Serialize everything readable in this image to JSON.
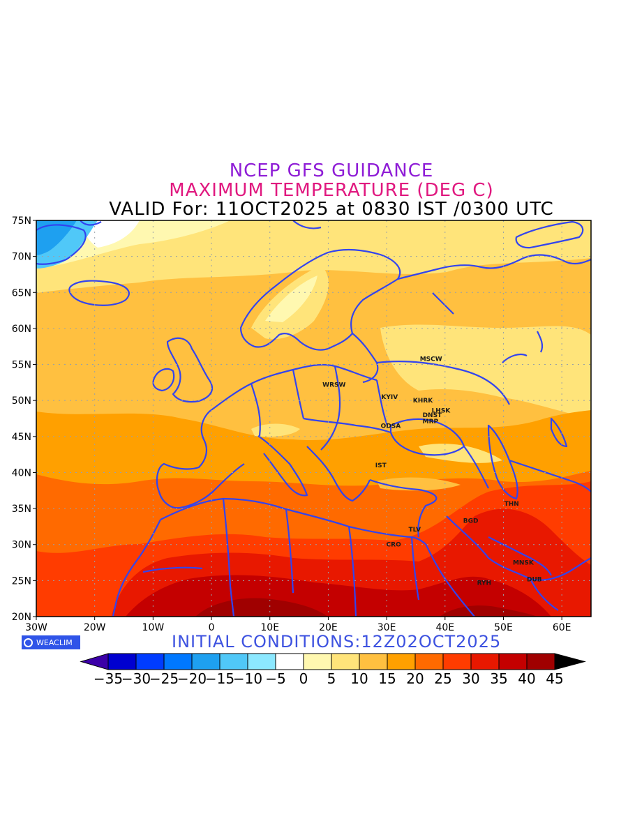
{
  "titles": {
    "line1": "NCEP GFS GUIDANCE",
    "line2": "MAXIMUM TEMPERATURE (DEG C)",
    "line3": "VALID For: 11OCT2025 at 0830 IST /0300 UTC"
  },
  "initial_conditions": "INITIAL  CONDITIONS:12Z02OCT2025",
  "brand": "WEACLIM",
  "axes": {
    "lat_ticks": [
      "75N",
      "70N",
      "65N",
      "60N",
      "55N",
      "50N",
      "45N",
      "40N",
      "35N",
      "30N",
      "25N",
      "20N"
    ],
    "lon_ticks": [
      "30W",
      "20W",
      "10W",
      "0",
      "10E",
      "20E",
      "30E",
      "40E",
      "50E",
      "60E"
    ]
  },
  "cities": [
    {
      "label": "MSCW",
      "lon": 37.6,
      "lat": 55.8
    },
    {
      "label": "WRSW",
      "lon": 21.0,
      "lat": 52.2
    },
    {
      "label": "KYIV",
      "lon": 30.5,
      "lat": 50.5
    },
    {
      "label": "KHRK",
      "lon": 36.2,
      "lat": 50.0
    },
    {
      "label": "LHSK",
      "lon": 39.3,
      "lat": 48.6
    },
    {
      "label": "DNST",
      "lon": 37.8,
      "lat": 48.0
    },
    {
      "label": "MRP",
      "lon": 37.5,
      "lat": 47.1
    },
    {
      "label": "ODSA",
      "lon": 30.7,
      "lat": 46.5
    },
    {
      "label": "IST",
      "lon": 29.0,
      "lat": 41.0
    },
    {
      "label": "THN",
      "lon": 51.4,
      "lat": 35.7
    },
    {
      "label": "BGD",
      "lon": 44.4,
      "lat": 33.3
    },
    {
      "label": "TLV",
      "lon": 34.8,
      "lat": 32.1
    },
    {
      "label": "CRO",
      "lon": 31.2,
      "lat": 30.0
    },
    {
      "label": "MNSK",
      "lon": 53.4,
      "lat": 27.5
    },
    {
      "label": "DUB",
      "lon": 55.3,
      "lat": 25.2
    },
    {
      "label": "RYH",
      "lon": 46.7,
      "lat": 24.7
    }
  ],
  "legend": {
    "labels": [
      "-35",
      "-30",
      "-25",
      "-20",
      "-15",
      "-10",
      "-5",
      "0",
      "5",
      "10",
      "15",
      "20",
      "25",
      "30",
      "35",
      "40",
      "45"
    ],
    "colors": [
      "#0000d0",
      "#003cff",
      "#0078ff",
      "#1ea0f0",
      "#50c8f8",
      "#8ce8ff",
      "#ffffff",
      "#fff8b0",
      "#ffe47a",
      "#ffc040",
      "#ffa000",
      "#ff6a00",
      "#ff3c00",
      "#e81800",
      "#c40000",
      "#a00000"
    ],
    "under_color": "#3c00a8",
    "over_color": "#000000"
  },
  "colors": {
    "coast": "#3344ee",
    "grid": "#9aa0a8"
  }
}
